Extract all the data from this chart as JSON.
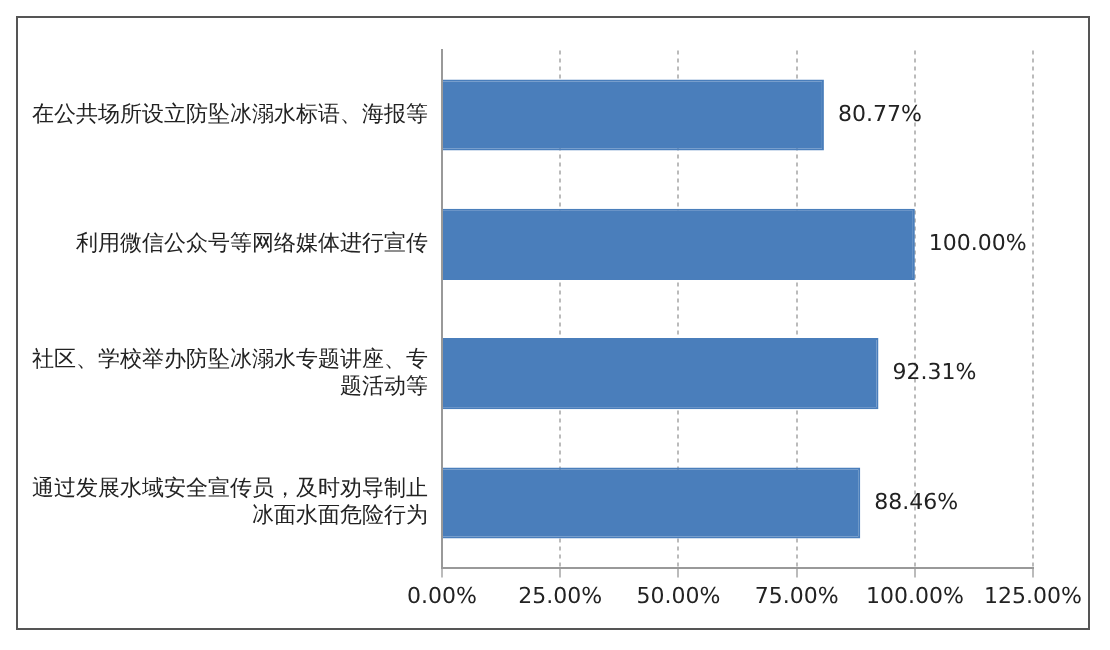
{
  "chart_data": {
    "type": "bar",
    "orientation": "horizontal",
    "categories": [
      "在公共场所设立防坠冰溺水标语、海报等",
      "利用微信公众号等网络媒体进行宣传",
      "社区、学校举办防坠冰溺水专题讲座、专题活动等",
      "通过发展水域安全宣传员，及时劝导制止冰面水面危险行为"
    ],
    "values": [
      80.77,
      100,
      92.31,
      88.46
    ],
    "color": "#4a7ebb",
    "value_labels": [
      "80.77%",
      "100.00%",
      "92.31%",
      "88.46%"
    ],
    "xlim": [
      0,
      125
    ],
    "xticks": [
      {
        "value": 0,
        "label": "0.00%"
      },
      {
        "value": 25,
        "label": "25.00%"
      },
      {
        "value": 50,
        "label": "50.00%"
      },
      {
        "value": 75,
        "label": "75.00%"
      },
      {
        "value": 100,
        "label": "100.00%"
      },
      {
        "value": 125,
        "label": "125.00%"
      }
    ],
    "grid": "x"
  }
}
